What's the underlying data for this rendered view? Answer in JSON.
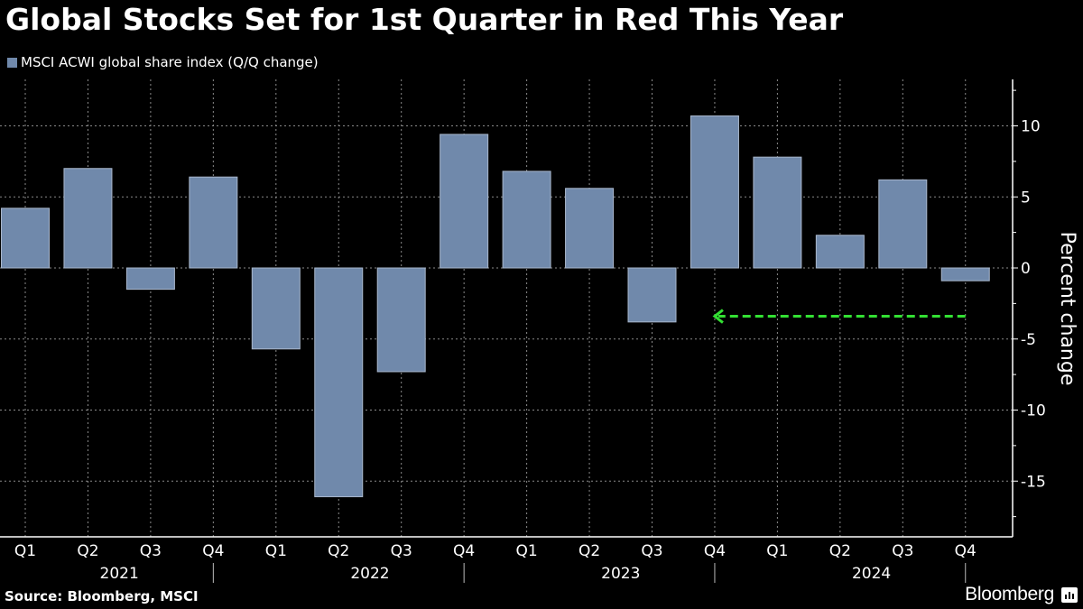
{
  "header": {
    "title": "Global Stocks Set for 1st Quarter in Red This Year"
  },
  "footer": {
    "source": "Source: Bloomberg, MSCI",
    "brand": "Bloomberg",
    "brand_icon": "bloomberg-chart-icon"
  },
  "colors": {
    "bar": "#7089ab",
    "bar_outline": "#a9b7cc",
    "arrow": "#33e033",
    "grid": "#8a8a8a",
    "background": "#000000"
  },
  "chart_data": {
    "type": "bar",
    "title": "Global Stocks Set for 1st Quarter in Red This Year",
    "legend": [
      "MSCI ACWI global share index (Q/Q change)"
    ],
    "legend_position": "top-left",
    "ylabel": "Percent change",
    "xlabel": "",
    "ylim": [
      -18,
      13.5
    ],
    "yticks": [
      10,
      5,
      0,
      -5,
      -10,
      -15
    ],
    "ytick_labels": [
      "10",
      "5",
      "0",
      "-5",
      "-10",
      "-15"
    ],
    "grid": true,
    "categories": [
      "Q1",
      "Q2",
      "Q3",
      "Q4",
      "Q1",
      "Q2",
      "Q3",
      "Q4",
      "Q1",
      "Q2",
      "Q3",
      "Q4",
      "Q1",
      "Q2",
      "Q3",
      "Q4"
    ],
    "years": [
      "2021",
      "2022",
      "2023",
      "2024"
    ],
    "series": [
      {
        "name": "MSCI ACWI global share index (Q/Q change)",
        "values": [
          4.2,
          7.0,
          -1.5,
          6.4,
          -5.7,
          -16.1,
          -7.3,
          9.4,
          6.8,
          5.6,
          -3.8,
          10.7,
          7.8,
          2.3,
          6.2,
          -0.9
        ]
      }
    ],
    "annotations": [
      {
        "type": "dashed-arrow",
        "from_category_index": 15,
        "to_category_index": 11,
        "y_value": -3.4,
        "direction": "left"
      }
    ]
  }
}
